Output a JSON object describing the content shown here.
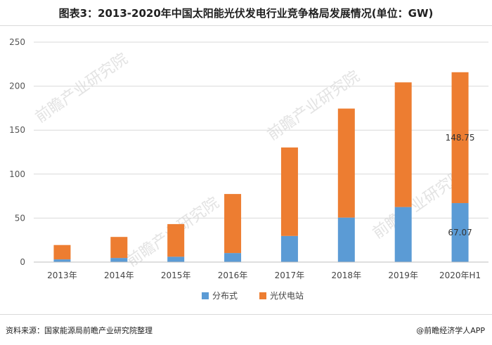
{
  "title": "图表3：2013-2020年中国太阳能光伏发电行业竞争格局发展情况(单位：GW)",
  "source": "资料来源：国家能源局前瞻产业研究院整理",
  "brand": "@前瞻经济学人APP",
  "watermark": "前瞻产业研究院",
  "colors": {
    "distributed": "#5b9bd5",
    "plant": "#ed7d31"
  },
  "chart_data": {
    "type": "bar",
    "stacked": true,
    "categories": [
      "2013年",
      "2014年",
      "2015年",
      "2016年",
      "2017年",
      "2018年",
      "2019年",
      "2020年H1"
    ],
    "series": [
      {
        "name": "分布式",
        "values": [
          3.1,
          4.7,
          6.1,
          10.3,
          29.7,
          50.6,
          62.6,
          67.07
        ]
      },
      {
        "name": "光伏电站",
        "values": [
          16.3,
          23.9,
          37.1,
          67.1,
          100.6,
          123.9,
          141.7,
          148.75
        ]
      }
    ],
    "data_labels": [
      {
        "series": "光伏电站",
        "category": "2020年H1",
        "text": "148.75"
      },
      {
        "series": "分布式",
        "category": "2020年H1",
        "text": "67.07"
      }
    ],
    "yticks": [
      "0",
      "50",
      "100",
      "150",
      "200",
      "250"
    ],
    "ylim": [
      0,
      250
    ],
    "grid": true,
    "legend": "bottom"
  }
}
